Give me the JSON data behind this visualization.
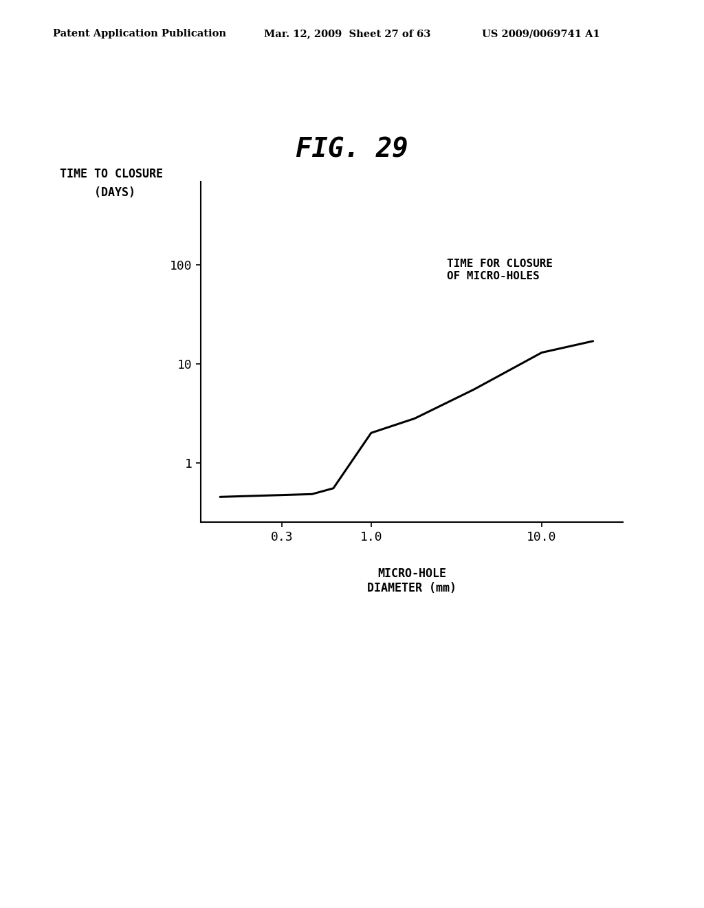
{
  "title": "FIG. 29",
  "ylabel_line1": "TIME TO CLOSURE",
  "ylabel_line2": "     (DAYS)",
  "xlabel": "MICRO-HOLE\nDIAMETER (mm)",
  "annotation": "TIME FOR CLOSURE\nOF MICRO-HOLES",
  "header_left": "Patent Application Publication",
  "header_mid": "Mar. 12, 2009  Sheet 27 of 63",
  "header_right": "US 2009/0069741 A1",
  "line_x": [
    0.13,
    0.45,
    0.6,
    1.0,
    1.8,
    4.0,
    10.0,
    20.0
  ],
  "line_y": [
    0.45,
    0.48,
    0.55,
    2.0,
    2.8,
    5.5,
    13.0,
    17.0
  ],
  "xlim": [
    0.1,
    30.0
  ],
  "ylim": [
    0.25,
    700.0
  ],
  "xticks": [
    0.3,
    1.0,
    10.0
  ],
  "xtick_labels": [
    "0.3",
    "1.0",
    "10.0"
  ],
  "yticks": [
    1,
    10,
    100
  ],
  "ytick_labels": [
    "1",
    "10",
    "100"
  ],
  "line_color": "#000000",
  "line_width": 2.2,
  "background_color": "#ffffff",
  "text_color": "#000000"
}
